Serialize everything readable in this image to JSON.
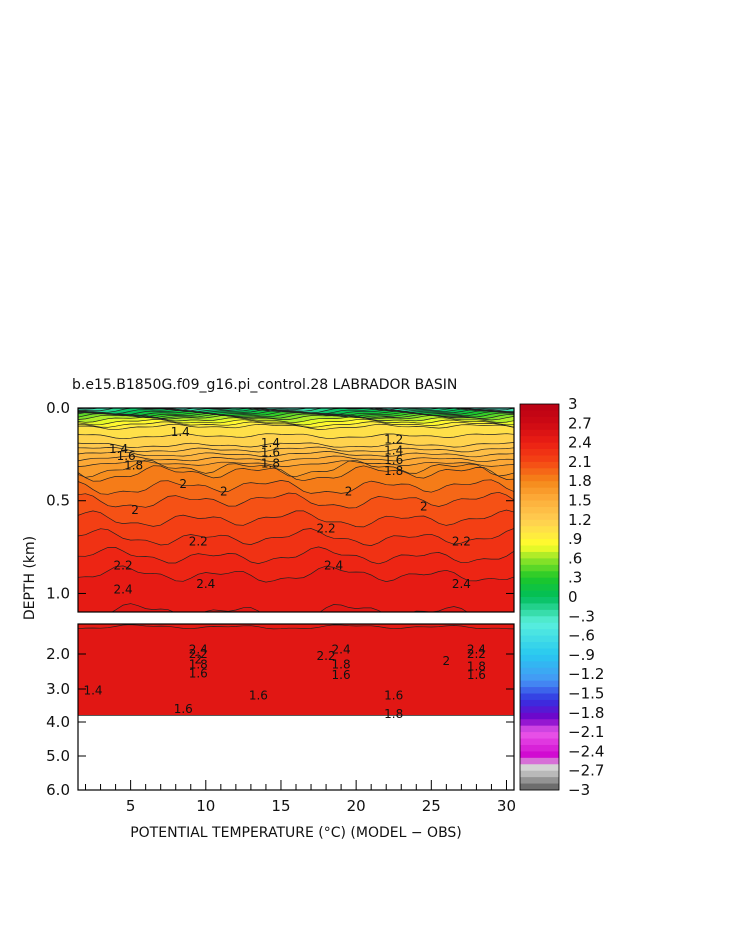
{
  "chart_data": {
    "type": "heatmap",
    "title": "b.e15.B1850G.f09_g16.pi_control.28 LABRADOR BASIN",
    "xlabel": "POTENTIAL TEMPERATURE (°C) (MODEL − OBS)",
    "ylabel": "DEPTH (km)",
    "xlim": [
      1.5,
      30.5
    ],
    "x_ticks": [
      5,
      10,
      15,
      20,
      25,
      30
    ],
    "x_tick_labels": [
      "5",
      "10",
      "15",
      "20",
      "25",
      "30"
    ],
    "upper_panel": {
      "ylim": [
        0.0,
        1.1
      ],
      "y_ticks": [
        0.0,
        0.5,
        1.0
      ],
      "y_tick_labels": [
        "0.0",
        "0.5",
        "1.0"
      ]
    },
    "lower_panel": {
      "ylim": [
        1.0,
        6.0
      ],
      "y_ticks": [
        2.0,
        3.0,
        4.0,
        5.0,
        6.0
      ],
      "y_tick_labels": [
        "2.0",
        "3.0",
        "4.0",
        "5.0",
        "6.0"
      ],
      "data_bottom_depth": 3.8
    },
    "colorbar": {
      "min": -3,
      "max": 3,
      "interval": 0.1,
      "tick_values": [
        3,
        2.7,
        2.4,
        2.1,
        1.8,
        1.5,
        1.2,
        0.9,
        0.6,
        0.3,
        0,
        -0.3,
        -0.6,
        -0.9,
        -1.2,
        -1.5,
        -1.8,
        -2.1,
        -2.4,
        -2.7,
        -3
      ],
      "tick_labels": [
        "3",
        "2.7",
        "2.4",
        "2.1",
        "1.8",
        "1.5",
        "1.2",
        ".9",
        ".6",
        ".3",
        "0",
        "−.3",
        "−.6",
        "−.9",
        "−1.2",
        "−1.5",
        "−1.8",
        "−2.1",
        "−2.4",
        "−2.7",
        "−3"
      ]
    },
    "depth_profile": [
      {
        "depth": 0.0,
        "value": -0.3
      },
      {
        "depth": 0.05,
        "value": 0.6
      },
      {
        "depth": 0.1,
        "value": 1.0
      },
      {
        "depth": 0.2,
        "value": 1.2
      },
      {
        "depth": 0.35,
        "value": 1.8
      },
      {
        "depth": 0.5,
        "value": 2.0
      },
      {
        "depth": 0.7,
        "value": 2.2
      },
      {
        "depth": 0.9,
        "value": 2.4
      },
      {
        "depth": 1.1,
        "value": 2.5
      },
      {
        "depth": 1.5,
        "value": 2.5
      },
      {
        "depth": 1.8,
        "value": 2.4
      },
      {
        "depth": 2.1,
        "value": 2.2
      },
      {
        "depth": 2.4,
        "value": 1.8
      },
      {
        "depth": 2.8,
        "value": 1.6
      },
      {
        "depth": 3.2,
        "value": 1.6
      },
      {
        "depth": 3.8,
        "value": 1.8
      }
    ],
    "contour_labels": [
      {
        "text": "1.4",
        "x": 8.3,
        "depth": 0.13,
        "panel": "upper"
      },
      {
        "text": "1.4",
        "x": 14.3,
        "depth": 0.19,
        "panel": "upper"
      },
      {
        "text": "1.6",
        "x": 14.3,
        "depth": 0.24,
        "panel": "upper"
      },
      {
        "text": "1.8",
        "x": 14.3,
        "depth": 0.3,
        "panel": "upper"
      },
      {
        "text": "1.2",
        "x": 22.5,
        "depth": 0.17,
        "panel": "upper"
      },
      {
        "text": "1.4",
        "x": 22.5,
        "depth": 0.23,
        "panel": "upper"
      },
      {
        "text": "1.6",
        "x": 22.5,
        "depth": 0.28,
        "panel": "upper"
      },
      {
        "text": "1.8",
        "x": 22.5,
        "depth": 0.34,
        "panel": "upper"
      },
      {
        "text": "1.4",
        "x": 4.2,
        "depth": 0.22,
        "panel": "upper"
      },
      {
        "text": "1.6",
        "x": 4.7,
        "depth": 0.26,
        "panel": "upper"
      },
      {
        "text": "1.8",
        "x": 5.2,
        "depth": 0.31,
        "panel": "upper"
      },
      {
        "text": "2",
        "x": 5.3,
        "depth": 0.55,
        "panel": "upper"
      },
      {
        "text": "2",
        "x": 8.5,
        "depth": 0.41,
        "panel": "upper"
      },
      {
        "text": "2",
        "x": 11.2,
        "depth": 0.45,
        "panel": "upper"
      },
      {
        "text": "2",
        "x": 19.5,
        "depth": 0.45,
        "panel": "upper"
      },
      {
        "text": "2",
        "x": 24.5,
        "depth": 0.53,
        "panel": "upper"
      },
      {
        "text": "2.2",
        "x": 4.5,
        "depth": 0.85,
        "panel": "upper"
      },
      {
        "text": "2.2",
        "x": 9.5,
        "depth": 0.72,
        "panel": "upper"
      },
      {
        "text": "2.2",
        "x": 18.0,
        "depth": 0.65,
        "panel": "upper"
      },
      {
        "text": "2.2",
        "x": 27.0,
        "depth": 0.72,
        "panel": "upper"
      },
      {
        "text": "2.4",
        "x": 4.5,
        "depth": 0.98,
        "panel": "upper"
      },
      {
        "text": "2.4",
        "x": 10.0,
        "depth": 0.95,
        "panel": "upper"
      },
      {
        "text": "2.4",
        "x": 18.5,
        "depth": 0.85,
        "panel": "upper"
      },
      {
        "text": "2.4",
        "x": 27.0,
        "depth": 0.95,
        "panel": "upper"
      },
      {
        "text": "2.4",
        "x": 9.5,
        "depth": 1.85,
        "panel": "lower"
      },
      {
        "text": "2.2",
        "x": 9.5,
        "depth": 2.0,
        "panel": "lower"
      },
      {
        "text": "2",
        "x": 9.5,
        "depth": 2.15,
        "panel": "lower"
      },
      {
        "text": "1.8",
        "x": 9.5,
        "depth": 2.3,
        "panel": "lower"
      },
      {
        "text": "1.6",
        "x": 9.5,
        "depth": 2.55,
        "panel": "lower"
      },
      {
        "text": "2.4",
        "x": 19.0,
        "depth": 1.85,
        "panel": "lower"
      },
      {
        "text": "2.2",
        "x": 18.0,
        "depth": 2.05,
        "panel": "lower"
      },
      {
        "text": "1.8",
        "x": 19.0,
        "depth": 2.3,
        "panel": "lower"
      },
      {
        "text": "1.6",
        "x": 19.0,
        "depth": 2.6,
        "panel": "lower"
      },
      {
        "text": "2.4",
        "x": 28.0,
        "depth": 1.85,
        "panel": "lower"
      },
      {
        "text": "2.2",
        "x": 28.0,
        "depth": 2.0,
        "panel": "lower"
      },
      {
        "text": "2",
        "x": 26.0,
        "depth": 2.2,
        "panel": "lower"
      },
      {
        "text": "1.8",
        "x": 28.0,
        "depth": 2.35,
        "panel": "lower"
      },
      {
        "text": "1.6",
        "x": 28.0,
        "depth": 2.6,
        "panel": "lower"
      },
      {
        "text": "1.4",
        "x": 2.5,
        "depth": 3.05,
        "panel": "lower"
      },
      {
        "text": "1.6",
        "x": 8.5,
        "depth": 3.6,
        "panel": "lower"
      },
      {
        "text": "1.6",
        "x": 13.5,
        "depth": 3.2,
        "panel": "lower"
      },
      {
        "text": "1.6",
        "x": 22.5,
        "depth": 3.2,
        "panel": "lower"
      },
      {
        "text": "1.8",
        "x": 22.5,
        "depth": 3.75,
        "panel": "lower"
      }
    ]
  }
}
